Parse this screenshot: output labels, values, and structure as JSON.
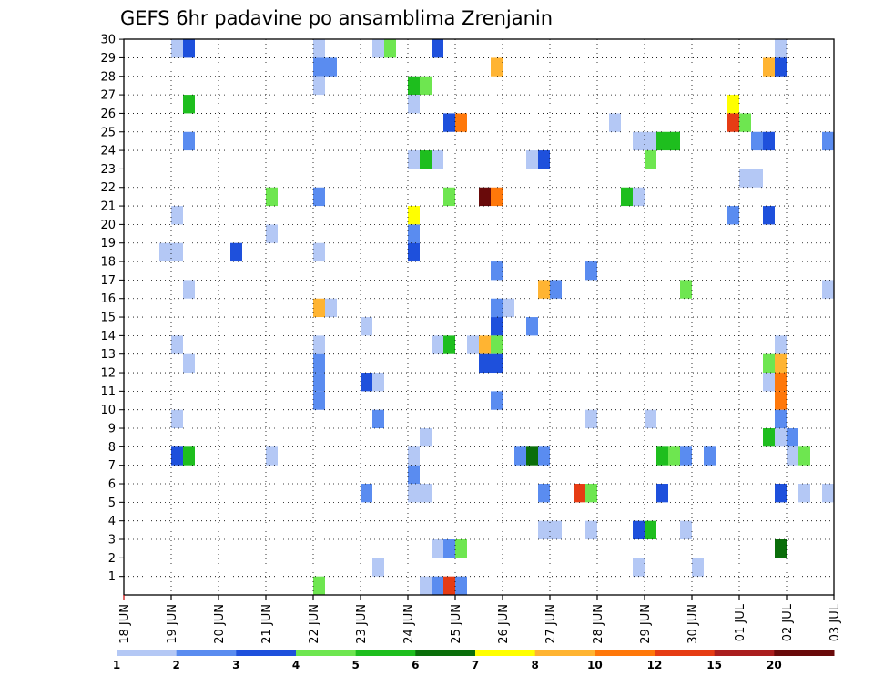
{
  "chart_data": {
    "type": "heatmap",
    "title": "GEFS 6hr padavine po ansamblima Zrenjanin",
    "xlabel": "",
    "ylabel": "",
    "x_ticks": [
      "18 JUN",
      "19 JUN",
      "20 JUN",
      "21 JUN",
      "22 JUN",
      "23 JUN",
      "24 JUN",
      "25 JUN",
      "26 JUN",
      "27 JUN",
      "28 JUN",
      "29 JUN",
      "30 JUN",
      "01 JUL",
      "02 JUL",
      "03 JUL"
    ],
    "y_ticks": [
      1,
      2,
      3,
      4,
      5,
      6,
      7,
      8,
      9,
      10,
      11,
      12,
      13,
      14,
      15,
      16,
      17,
      18,
      19,
      20,
      21,
      22,
      23,
      24,
      25,
      26,
      27,
      28,
      29,
      30
    ],
    "time_step_hours": 6,
    "grid": true,
    "colorbar": {
      "bounds": [
        1,
        2,
        3,
        4,
        5,
        6,
        7,
        8,
        10,
        12,
        15,
        20
      ],
      "labels": [
        "1",
        "2",
        "3",
        "4",
        "5",
        "6",
        "7",
        "8",
        "10",
        "12",
        "15",
        "20"
      ],
      "colors": [
        "#b4c8f5",
        "#5a8cf0",
        "#1e50dc",
        "#6ee650",
        "#1ebe1e",
        "#0a6e0a",
        "#ffff00",
        "#ffb432",
        "#ff780a",
        "#e63c14",
        "#aa1e1e",
        "#690a0a"
      ]
    },
    "cells": [
      [
        1,
        19.0,
        29
      ],
      [
        3,
        19.25,
        29
      ],
      [
        1,
        22.0,
        29
      ],
      [
        1,
        23.25,
        29
      ],
      [
        4,
        23.5,
        29
      ],
      [
        3,
        24.5,
        29
      ],
      [
        1,
        31.75,
        29
      ],
      [
        5,
        32.0,
        30
      ],
      [
        1,
        31.75,
        30
      ],
      [
        2,
        22.0,
        28
      ],
      [
        2,
        22.25,
        28
      ],
      [
        8,
        25.75,
        28
      ],
      [
        8,
        31.5,
        28
      ],
      [
        3,
        31.75,
        28
      ],
      [
        1,
        22.0,
        27
      ],
      [
        5,
        24.0,
        27
      ],
      [
        4,
        24.25,
        27
      ],
      [
        5,
        19.25,
        26
      ],
      [
        1,
        24.0,
        26
      ],
      [
        7,
        30.75,
        26
      ],
      [
        3,
        24.75,
        25
      ],
      [
        9,
        25.0,
        25
      ],
      [
        1,
        28.25,
        25
      ],
      [
        10,
        30.75,
        25
      ],
      [
        4,
        31.0,
        25
      ],
      [
        2,
        19.25,
        24
      ],
      [
        1,
        28.75,
        24
      ],
      [
        1,
        29.0,
        24
      ],
      [
        5,
        29.25,
        24
      ],
      [
        5,
        29.5,
        24
      ],
      [
        2,
        31.25,
        24
      ],
      [
        3,
        31.5,
        24
      ],
      [
        2,
        32.75,
        24
      ],
      [
        1,
        33.75,
        24
      ],
      [
        1,
        24.0,
        23
      ],
      [
        5,
        24.25,
        23
      ],
      [
        1,
        24.5,
        23
      ],
      [
        1,
        26.5,
        23
      ],
      [
        3,
        26.75,
        23
      ],
      [
        4,
        29.0,
        23
      ],
      [
        1,
        31.0,
        22
      ],
      [
        1,
        31.25,
        22
      ],
      [
        4,
        21.0,
        21
      ],
      [
        2,
        22.0,
        21
      ],
      [
        4,
        24.75,
        21
      ],
      [
        12,
        25.5,
        21
      ],
      [
        9,
        25.75,
        21
      ],
      [
        5,
        28.5,
        21
      ],
      [
        1,
        28.75,
        21
      ],
      [
        1,
        19.0,
        20
      ],
      [
        7,
        24.0,
        20
      ],
      [
        2,
        30.75,
        20
      ],
      [
        3,
        31.5,
        20
      ],
      [
        1,
        21.0,
        19
      ],
      [
        2,
        24.0,
        19
      ],
      [
        1,
        18.75,
        18
      ],
      [
        1,
        19.0,
        18
      ],
      [
        3,
        20.25,
        18
      ],
      [
        1,
        22.0,
        18
      ],
      [
        3,
        24.0,
        18
      ],
      [
        2,
        25.75,
        17
      ],
      [
        2,
        27.75,
        17
      ],
      [
        2,
        33.0,
        17
      ],
      [
        1,
        19.25,
        16
      ],
      [
        8,
        26.75,
        16
      ],
      [
        2,
        27.0,
        16
      ],
      [
        4,
        29.75,
        16
      ],
      [
        1,
        32.75,
        16
      ],
      [
        1,
        33.0,
        16
      ],
      [
        2,
        33.75,
        16
      ],
      [
        8,
        22.0,
        15
      ],
      [
        1,
        22.25,
        15
      ],
      [
        2,
        25.75,
        15
      ],
      [
        1,
        26.0,
        15
      ],
      [
        3,
        33.25,
        15
      ],
      [
        1,
        23.0,
        14
      ],
      [
        3,
        25.75,
        14
      ],
      [
        2,
        26.5,
        14
      ],
      [
        1,
        19.0,
        13
      ],
      [
        1,
        22.0,
        13
      ],
      [
        1,
        24.5,
        13
      ],
      [
        5,
        24.75,
        13
      ],
      [
        1,
        25.25,
        13
      ],
      [
        8,
        25.5,
        13
      ],
      [
        4,
        25.75,
        13
      ],
      [
        1,
        31.75,
        13
      ],
      [
        1,
        33.0,
        13
      ],
      [
        2,
        33.25,
        13
      ],
      [
        3,
        34.0,
        13
      ],
      [
        1,
        19.25,
        12
      ],
      [
        2,
        22.0,
        12
      ],
      [
        3,
        25.5,
        12
      ],
      [
        3,
        25.75,
        12
      ],
      [
        4,
        31.5,
        12
      ],
      [
        8,
        31.75,
        12
      ],
      [
        2,
        22.0,
        11
      ],
      [
        3,
        23.0,
        11
      ],
      [
        1,
        23.25,
        11
      ],
      [
        1,
        31.5,
        11
      ],
      [
        9,
        31.75,
        11
      ],
      [
        2,
        22.0,
        10
      ],
      [
        2,
        25.75,
        10
      ],
      [
        9,
        31.75,
        10
      ],
      [
        1,
        19.0,
        9
      ],
      [
        2,
        23.25,
        9
      ],
      [
        1,
        27.75,
        9
      ],
      [
        1,
        29.0,
        9
      ],
      [
        2,
        31.75,
        9
      ],
      [
        1,
        24.25,
        8
      ],
      [
        5,
        31.5,
        8
      ],
      [
        1,
        31.75,
        8
      ],
      [
        2,
        32.0,
        8
      ],
      [
        3,
        33.5,
        8
      ],
      [
        2,
        33.75,
        8
      ],
      [
        3,
        19.0,
        7
      ],
      [
        5,
        19.25,
        7
      ],
      [
        1,
        21.0,
        7
      ],
      [
        1,
        24.0,
        7
      ],
      [
        2,
        26.25,
        7
      ],
      [
        6,
        26.5,
        7
      ],
      [
        2,
        26.75,
        7
      ],
      [
        5,
        29.25,
        7
      ],
      [
        4,
        29.5,
        7
      ],
      [
        2,
        29.75,
        7
      ],
      [
        2,
        30.25,
        7
      ],
      [
        1,
        32.0,
        7
      ],
      [
        4,
        32.25,
        7
      ],
      [
        2,
        24.0,
        6
      ],
      [
        2,
        23.0,
        5
      ],
      [
        1,
        24.0,
        5
      ],
      [
        1,
        24.25,
        5
      ],
      [
        2,
        26.75,
        5
      ],
      [
        10,
        27.5,
        5
      ],
      [
        4,
        27.75,
        5
      ],
      [
        3,
        29.25,
        5
      ],
      [
        3,
        31.75,
        5
      ],
      [
        1,
        32.25,
        5
      ],
      [
        1,
        32.75,
        5
      ],
      [
        3,
        33.0,
        4
      ],
      [
        4,
        33.25,
        4
      ],
      [
        2,
        34.0,
        4
      ],
      [
        1,
        26.75,
        3
      ],
      [
        1,
        27.0,
        3
      ],
      [
        1,
        27.75,
        3
      ],
      [
        3,
        28.75,
        3
      ],
      [
        5,
        29.0,
        3
      ],
      [
        1,
        29.75,
        3
      ],
      [
        1,
        24.5,
        2
      ],
      [
        2,
        24.75,
        2
      ],
      [
        4,
        25.0,
        2
      ],
      [
        6,
        31.75,
        2
      ],
      [
        1,
        33.25,
        2
      ],
      [
        1,
        33.5,
        2
      ],
      [
        8,
        34.0,
        2
      ],
      [
        1,
        23.25,
        1
      ],
      [
        1,
        28.75,
        1
      ],
      [
        1,
        30.0,
        1
      ],
      [
        4,
        22.0,
        0
      ],
      [
        1,
        24.25,
        0
      ],
      [
        2,
        24.5,
        0
      ],
      [
        10,
        24.75,
        0
      ],
      [
        2,
        25.0,
        0
      ]
    ]
  }
}
